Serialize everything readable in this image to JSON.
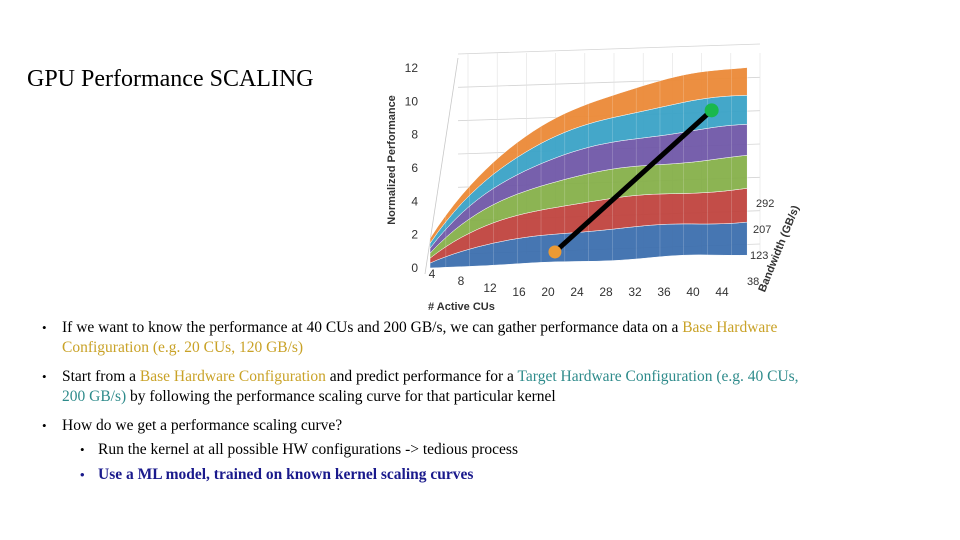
{
  "slide": {
    "title": "GPU Performance SCALING"
  },
  "chart_data": {
    "type": "surface",
    "ylabel": "Normalized Performance",
    "xlabel": "# Active CUs",
    "zlabel": "Bandwidth (GB/s)",
    "y_ticks": [
      "0",
      "2",
      "4",
      "6",
      "8",
      "10",
      "12"
    ],
    "x_ticks": [
      "4",
      "8",
      "12",
      "16",
      "20",
      "24",
      "28",
      "32",
      "36",
      "40",
      "44"
    ],
    "z_ticks": [
      "38",
      "123",
      "207",
      "292"
    ],
    "ylim": [
      0,
      12
    ],
    "band_colors": [
      "#3d6fae",
      "#c0443f",
      "#86b04a",
      "#7058a8",
      "#3aa3c7",
      "#ec8a37"
    ],
    "base_point": {
      "cus": 20,
      "bandwidth": 120,
      "color": "#ec9a34"
    },
    "target_point": {
      "cus": 40,
      "bandwidth": 200,
      "color": "#1ab84c"
    },
    "grid": true
  },
  "bullets": {
    "b1_text": "If we want to know the performance at 40 CUs and 200 GB/s, we can gather performance data on a",
    "b1_highlight": "Base Hardware Configuration (e.g. 20 CUs, 120 GB/s)",
    "b2_pre": "Start from a",
    "b2_base": "Base Hardware Configuration",
    "b2_mid": "and predict performance for a",
    "b2_target": "Target Hardware Configuration (e.g. 40 CUs, 200 GB/s)",
    "b2_post": "by following the performance scaling curve for that particular kernel",
    "b3_text": "How do we get a performance scaling curve?",
    "sub1": "Run the kernel at all possible HW configurations -> tedious process",
    "sub2": "Use a ML model, trained on known kernel scaling curves"
  }
}
